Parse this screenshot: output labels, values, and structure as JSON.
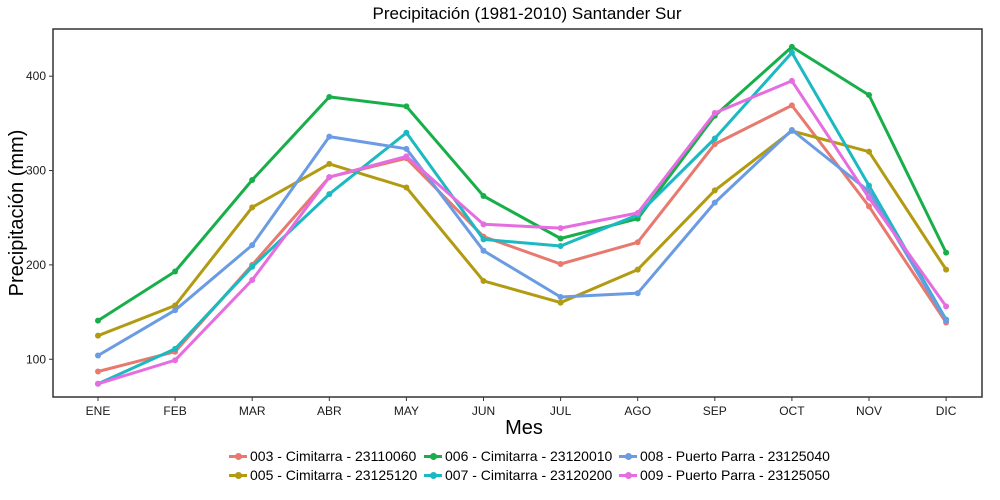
{
  "chart_data": {
    "type": "line",
    "title": "Precipitación (1981-2010)  Santander Sur",
    "xlabel": "Mes",
    "ylabel": "Precipitación (mm)",
    "categories": [
      "ENE",
      "FEB",
      "MAR",
      "ABR",
      "MAY",
      "JUN",
      "JUL",
      "AGO",
      "SEP",
      "OCT",
      "NOV",
      "DIC"
    ],
    "yticks": [
      100,
      200,
      300,
      400
    ],
    "ylim": [
      60,
      450
    ],
    "grid": false,
    "legend_position": "bottom",
    "series": [
      {
        "name": "003 - Cimitarra - 23110060",
        "color": "#E7796F",
        "values": [
          87,
          108,
          200,
          293,
          313,
          230,
          201,
          224,
          328,
          369,
          262,
          139
        ]
      },
      {
        "name": "005 - Cimitarra - 23125120",
        "color": "#B29A11",
        "values": [
          125,
          157,
          261,
          307,
          282,
          183,
          160,
          195,
          279,
          342,
          320,
          195
        ]
      },
      {
        "name": "006 - Cimitarra - 23120010",
        "color": "#18AF4A",
        "values": [
          141,
          193,
          290,
          378,
          368,
          273,
          228,
          249,
          358,
          431,
          380,
          213
        ]
      },
      {
        "name": "007 - Cimitarra - 23120200",
        "color": "#1BB9C1",
        "values": [
          74,
          111,
          198,
          275,
          340,
          227,
          220,
          253,
          334,
          425,
          284,
          142
        ]
      },
      {
        "name": "008 - Puerto Parra - 23125040",
        "color": "#6A9BE3",
        "values": [
          104,
          152,
          221,
          336,
          323,
          215,
          166,
          170,
          266,
          343,
          278,
          141
        ]
      },
      {
        "name": "009 - Puerto Parra - 23125050",
        "color": "#E56DE1",
        "values": [
          74,
          99,
          184,
          293,
          315,
          243,
          239,
          255,
          361,
          395,
          271,
          156
        ]
      }
    ]
  }
}
